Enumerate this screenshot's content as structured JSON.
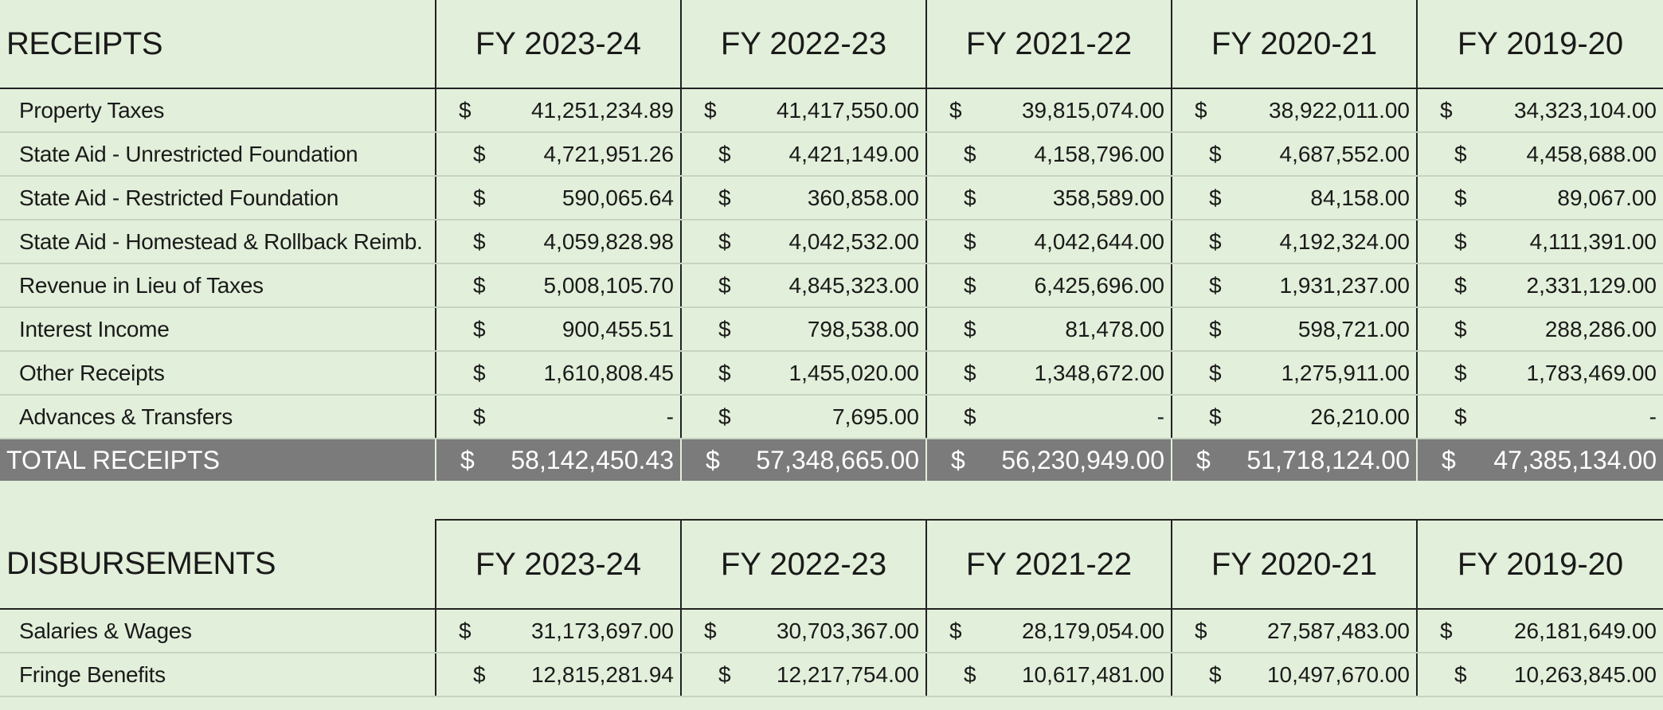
{
  "receipts": {
    "title": "RECEIPTS",
    "years": [
      "FY 2023-24",
      "FY 2022-23",
      "FY 2021-22",
      "FY 2020-21",
      "FY 2019-20"
    ],
    "currency_symbol": "$",
    "rows": [
      {
        "label": "Property Taxes",
        "values": [
          "41,251,234.89",
          "41,417,550.00",
          "39,815,074.00",
          "38,922,011.00",
          "34,323,104.00"
        ]
      },
      {
        "label": "State Aid - Unrestricted Foundation",
        "values": [
          "4,721,951.26",
          "4,421,149.00",
          "4,158,796.00",
          "4,687,552.00",
          "4,458,688.00"
        ]
      },
      {
        "label": "State Aid - Restricted Foundation",
        "values": [
          "590,065.64",
          "360,858.00",
          "358,589.00",
          "84,158.00",
          "89,067.00"
        ]
      },
      {
        "label": "State Aid - Homestead & Rollback Reimb.",
        "values": [
          "4,059,828.98",
          "4,042,532.00",
          "4,042,644.00",
          "4,192,324.00",
          "4,111,391.00"
        ]
      },
      {
        "label": "Revenue in Lieu of Taxes",
        "values": [
          "5,008,105.70",
          "4,845,323.00",
          "6,425,696.00",
          "1,931,237.00",
          "2,331,129.00"
        ]
      },
      {
        "label": "Interest Income",
        "values": [
          "900,455.51",
          "798,538.00",
          "81,478.00",
          "598,721.00",
          "288,286.00"
        ]
      },
      {
        "label": "Other Receipts",
        "values": [
          "1,610,808.45",
          "1,455,020.00",
          "1,348,672.00",
          "1,275,911.00",
          "1,783,469.00"
        ]
      },
      {
        "label": "Advances & Transfers",
        "values": [
          "-",
          "7,695.00",
          "-",
          "26,210.00",
          "-"
        ]
      }
    ],
    "total": {
      "label": "TOTAL RECEIPTS",
      "values": [
        "58,142,450.43",
        "57,348,665.00",
        "56,230,949.00",
        "51,718,124.00",
        "47,385,134.00"
      ]
    }
  },
  "disbursements": {
    "title": "DISBURSEMENTS",
    "years": [
      "FY 2023-24",
      "FY 2022-23",
      "FY 2021-22",
      "FY 2020-21",
      "FY 2019-20"
    ],
    "currency_symbol": "$",
    "rows": [
      {
        "label": "Salaries & Wages",
        "values": [
          "31,173,697.00",
          "30,703,367.00",
          "28,179,054.00",
          "27,587,483.00",
          "26,181,649.00"
        ]
      },
      {
        "label": "Fringe Benefits",
        "values": [
          "12,815,281.94",
          "12,217,754.00",
          "10,617,481.00",
          "10,497,670.00",
          "10,263,845.00"
        ]
      }
    ]
  }
}
